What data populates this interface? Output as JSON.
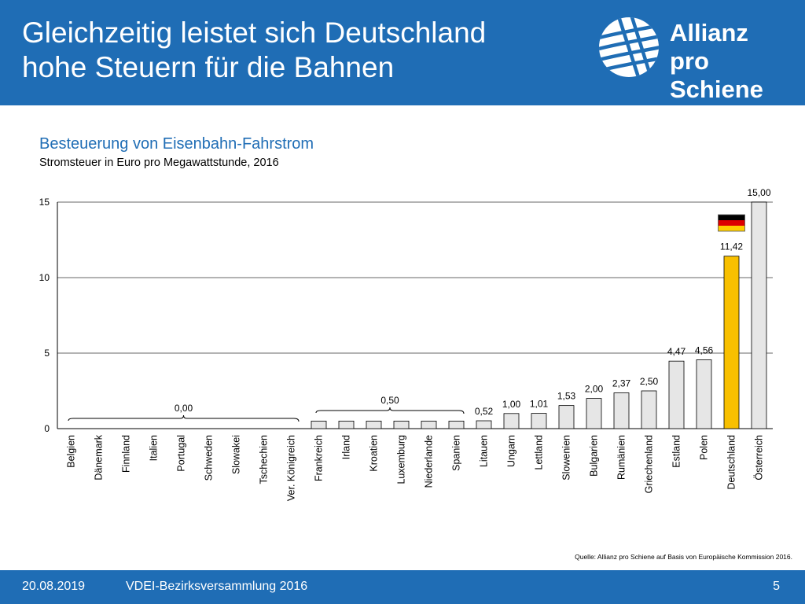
{
  "slide": {
    "title_lines": [
      "Gleichzeitig leistet sich Deutschland",
      "hohe Steuern für die Bahnen"
    ]
  },
  "logo": {
    "lines": [
      "Allianz",
      "pro Schiene"
    ],
    "icon": "rail-logo-icon"
  },
  "chart_data": {
    "type": "bar",
    "title": "Besteuerung von Eisenbahn-Fahrstrom",
    "subtitle": "Stromsteuer in Euro pro Megawattstunde, 2016",
    "categories": [
      "Belgien",
      "Dänemark",
      "Finnland",
      "Italien",
      "Portugal",
      "Schweden",
      "Slowakei",
      "Tschechien",
      "Ver. Königreich",
      "Frankreich",
      "Irland",
      "Kroatien",
      "Luxemburg",
      "Niederlande",
      "Spanien",
      "Litauen",
      "Ungarn",
      "Lettland",
      "Slowenien",
      "Bulgarien",
      "Rumänien",
      "Griechenland",
      "Estland",
      "Polen",
      "Deutschland",
      "Österreich"
    ],
    "values": [
      0,
      0,
      0,
      0,
      0,
      0,
      0,
      0,
      0,
      0.5,
      0.5,
      0.5,
      0.5,
      0.5,
      0.5,
      0.52,
      1.0,
      1.01,
      1.53,
      2.0,
      2.37,
      2.5,
      4.47,
      4.56,
      11.42,
      15.0
    ],
    "data_labels": [
      "",
      "",
      "",
      "",
      "",
      "",
      "",
      "",
      "",
      "",
      "",
      "",
      "",
      "",
      "",
      "0,52",
      "1,00",
      "1,01",
      "1,53",
      "2,00",
      "2,37",
      "2,50",
      "4,47",
      "4,56",
      "11,42",
      "15,00"
    ],
    "group_labels": [
      {
        "label": "0,00",
        "from": 0,
        "to": 8
      },
      {
        "label": "0,50",
        "from": 9,
        "to": 14
      }
    ],
    "highlight_index": 24,
    "highlight_icon": "germany-flag-icon",
    "ylim": [
      0,
      15
    ],
    "yticks": [
      0,
      5,
      10,
      15
    ],
    "grid": true,
    "colors": {
      "bar": "#e6e6e6",
      "highlight": "#f8c000",
      "outline": "#000000",
      "grid": "#9a9a9a"
    }
  },
  "source": "Quelle: Allianz pro Schiene auf Basis von Europäische Kommission  2016.",
  "footer": {
    "date": "20.08.2019",
    "event": "VDEI-Bezirksversammlung 2016",
    "page": "5"
  },
  "colors": {
    "brand": "#1f6db5",
    "highlight": "#f8c000"
  }
}
